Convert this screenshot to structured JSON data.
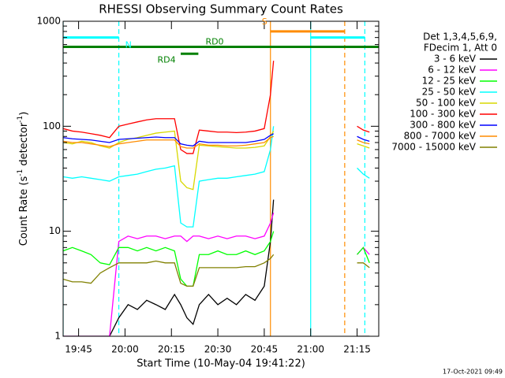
{
  "chart_data": {
    "type": "line",
    "title": "RHESSI Observing Summary Count Rates",
    "xlabel": "Start Time (10-May-04 19:41:22)",
    "ylabel_parts": [
      "Count Rate (s",
      "-1",
      " detector",
      "-1",
      ")"
    ],
    "legend_header": [
      "Det 1,3,4,5,6,9,",
      "FDecim 1, Att 0"
    ],
    "footer": "17-Oct-2021 09:49",
    "log_y": true,
    "xlim": [
      1180,
      1282
    ],
    "ylim": [
      1,
      1000
    ],
    "xticks": [
      {
        "value": 1185,
        "label": "19:45"
      },
      {
        "value": 1200,
        "label": "20:00"
      },
      {
        "value": 1215,
        "label": "20:15"
      },
      {
        "value": 1230,
        "label": "20:30"
      },
      {
        "value": 1245,
        "label": "20:45"
      },
      {
        "value": 1260,
        "label": "21:00"
      },
      {
        "value": 1275,
        "label": "21:15"
      }
    ],
    "yticks": [
      1,
      10,
      100,
      1000
    ],
    "x": [
      1180,
      1183,
      1186,
      1189,
      1192,
      1195,
      1198,
      1201,
      1204,
      1207,
      1210,
      1213,
      1216,
      1218,
      1220,
      1222,
      1224,
      1227,
      1230,
      1233,
      1236,
      1239,
      1242,
      1245,
      1247,
      1248,
      1260,
      1275,
      1277,
      1279
    ],
    "series": [
      {
        "name": "3 - 6 keV",
        "color": "#000000",
        "values": [
          1,
          1,
          1,
          1,
          1,
          1,
          1.5,
          2,
          1.8,
          2.2,
          2,
          1.8,
          2.5,
          2,
          1.5,
          1.3,
          2,
          2.5,
          2,
          2.3,
          2,
          2.5,
          2.2,
          3,
          8,
          20,
          null,
          1,
          1,
          1
        ]
      },
      {
        "name": "6 - 12 keV",
        "color": "#ff00ff",
        "values": [
          1,
          1,
          1,
          1,
          1,
          1,
          8,
          9,
          8.5,
          9,
          9,
          8.5,
          9,
          9,
          8,
          9,
          9,
          8.5,
          9,
          8.5,
          9,
          9,
          8.5,
          9,
          12,
          15,
          null,
          6,
          7,
          6
        ]
      },
      {
        "name": "12 - 25 keV",
        "color": "#00ff00",
        "values": [
          6.5,
          7,
          6.5,
          6,
          5,
          4.8,
          7,
          7,
          6.5,
          7,
          6.5,
          7,
          6.5,
          3.5,
          3,
          3,
          6,
          6,
          6.5,
          6,
          6,
          6.5,
          6,
          6.5,
          8,
          10,
          null,
          6,
          7,
          5
        ]
      },
      {
        "name": "25 - 50 keV",
        "color": "#00ffff",
        "values": [
          33,
          32,
          33,
          32,
          31,
          30,
          33,
          34,
          35,
          37,
          39,
          40,
          42,
          12,
          11,
          11,
          30,
          31,
          32,
          32,
          33,
          34,
          35,
          37,
          60,
          100,
          null,
          40,
          35,
          32
        ]
      },
      {
        "name": "50 - 100 keV",
        "color": "#d8d800",
        "values": [
          70,
          68,
          72,
          70,
          65,
          62,
          70,
          75,
          78,
          82,
          86,
          88,
          90,
          30,
          26,
          25,
          66,
          65,
          64,
          63,
          62,
          62,
          63,
          65,
          80,
          90,
          null,
          68,
          65,
          62
        ]
      },
      {
        "name": "100 - 300 keV",
        "color": "#ff0000",
        "values": [
          95,
          90,
          88,
          85,
          82,
          78,
          100,
          105,
          110,
          115,
          118,
          118,
          118,
          60,
          55,
          55,
          92,
          90,
          88,
          88,
          87,
          88,
          90,
          95,
          200,
          420,
          null,
          100,
          92,
          88
        ]
      },
      {
        "name": "300 - 800 keV",
        "color": "#0000ff",
        "values": [
          78,
          76,
          75,
          74,
          72,
          70,
          75,
          76,
          77,
          78,
          79,
          78,
          78,
          68,
          66,
          65,
          72,
          70,
          70,
          70,
          70,
          70,
          72,
          75,
          82,
          85,
          null,
          80,
          75,
          72
        ]
      },
      {
        "name": "800 - 7000 keV",
        "color": "#ff8c00",
        "values": [
          72,
          70,
          70,
          68,
          66,
          64,
          68,
          70,
          72,
          74,
          74,
          74,
          74,
          64,
          62,
          62,
          68,
          66,
          66,
          65,
          65,
          66,
          68,
          70,
          78,
          80,
          null,
          74,
          70,
          68
        ]
      },
      {
        "name": "7000 - 15000 keV",
        "color": "#808000",
        "values": [
          3.5,
          3.3,
          3.3,
          3.2,
          4,
          4.5,
          5,
          5,
          5,
          5,
          5.2,
          5,
          5,
          3.2,
          3,
          3,
          4.5,
          4.5,
          4.5,
          4.5,
          4.5,
          4.6,
          4.6,
          5,
          5.5,
          6,
          null,
          5,
          5,
          4.5
        ]
      }
    ],
    "flag_bars": [
      {
        "label": "N",
        "color": "#00ffff",
        "y": 700,
        "x": [
          1180,
          1198
        ]
      },
      {
        "color": "#00ffff",
        "y": 700,
        "x": [
          1260,
          1277.5
        ]
      },
      {
        "label": "S",
        "color": "#ff8c00",
        "y": 800,
        "x": [
          1247,
          1271
        ]
      },
      {
        "label": "RD0",
        "color": "#008000",
        "y": 570,
        "x": [
          1180,
          1282
        ]
      },
      {
        "label": "RD4",
        "color": "#008000",
        "y": 490,
        "x": [
          1218,
          1223.7
        ]
      }
    ],
    "vlines": [
      {
        "x": 1180,
        "color": "#00ffff",
        "dashed": false
      },
      {
        "x": 1198,
        "color": "#00ffff",
        "dashed": true
      },
      {
        "x": 1247,
        "color": "#ff8c00",
        "dashed": false
      },
      {
        "x": 1260,
        "color": "#00ffff",
        "dashed": false
      },
      {
        "x": 1271,
        "color": "#ff8c00",
        "dashed": true
      },
      {
        "x": 1277.5,
        "color": "#00ffff",
        "dashed": true
      }
    ]
  }
}
